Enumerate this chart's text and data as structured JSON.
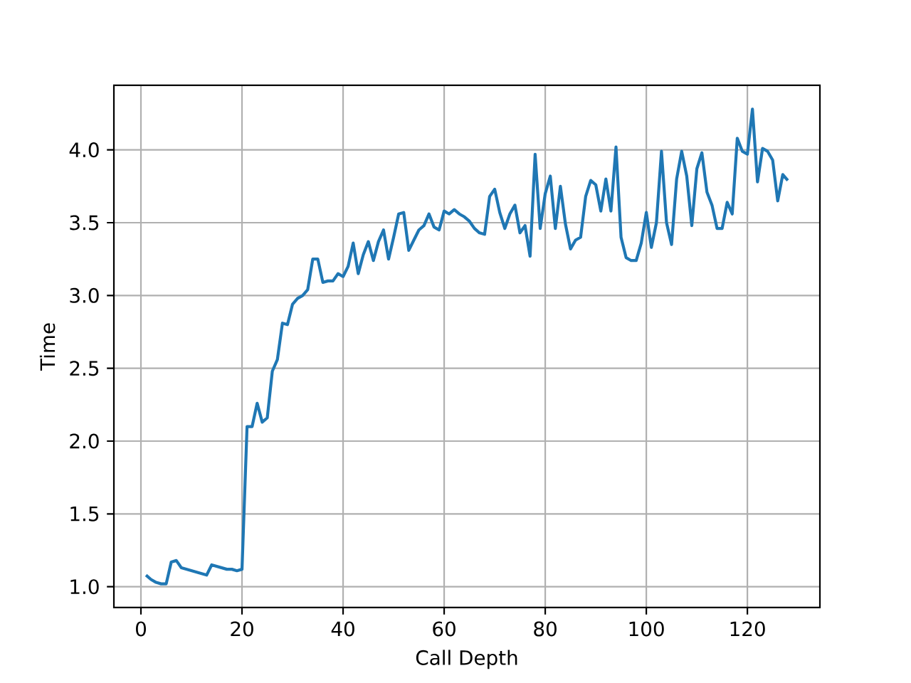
{
  "chart_data": {
    "type": "line",
    "xlabel": "Call Depth",
    "ylabel": "Time",
    "color": "#1f77b4",
    "grid": true,
    "xlim": [
      -5.35,
      134.35
    ],
    "ylim": [
      0.857,
      4.443
    ],
    "xticks": [
      0,
      20,
      40,
      60,
      80,
      100,
      120
    ],
    "yticks": [
      {
        "value": 1.0,
        "label": "1.0"
      },
      {
        "value": 1.5,
        "label": "1.5"
      },
      {
        "value": 2.0,
        "label": "2.0"
      },
      {
        "value": 2.5,
        "label": "2.5"
      },
      {
        "value": 3.0,
        "label": "3.0"
      },
      {
        "value": 3.5,
        "label": "3.5"
      },
      {
        "value": 4.0,
        "label": "4.0"
      }
    ],
    "x": [
      1,
      2,
      3,
      4,
      5,
      6,
      7,
      8,
      9,
      10,
      11,
      12,
      13,
      14,
      15,
      16,
      17,
      18,
      19,
      20,
      21,
      22,
      23,
      24,
      25,
      26,
      27,
      28,
      29,
      30,
      31,
      32,
      33,
      34,
      35,
      36,
      37,
      38,
      39,
      40,
      41,
      42,
      43,
      44,
      45,
      46,
      47,
      48,
      49,
      50,
      51,
      52,
      53,
      54,
      55,
      56,
      57,
      58,
      59,
      60,
      61,
      62,
      63,
      64,
      65,
      66,
      67,
      68,
      69,
      70,
      71,
      72,
      73,
      74,
      75,
      76,
      77,
      78,
      79,
      80,
      81,
      82,
      83,
      84,
      85,
      86,
      87,
      88,
      89,
      90,
      91,
      92,
      93,
      94,
      95,
      96,
      97,
      98,
      99,
      100,
      101,
      102,
      103,
      104,
      105,
      106,
      107,
      108,
      109,
      110,
      111,
      112,
      113,
      114,
      115,
      116,
      117,
      118,
      119,
      120,
      121,
      122,
      123,
      124,
      125,
      126,
      127,
      128
    ],
    "values": [
      1.08,
      1.05,
      1.03,
      1.02,
      1.02,
      1.17,
      1.18,
      1.13,
      1.12,
      1.11,
      1.1,
      1.09,
      1.08,
      1.15,
      1.14,
      1.13,
      1.12,
      1.12,
      1.11,
      1.12,
      2.1,
      2.1,
      2.26,
      2.13,
      2.16,
      2.48,
      2.56,
      2.81,
      2.8,
      2.94,
      2.98,
      3.0,
      3.04,
      3.25,
      3.25,
      3.09,
      3.1,
      3.1,
      3.15,
      3.13,
      3.2,
      3.36,
      3.15,
      3.28,
      3.37,
      3.24,
      3.37,
      3.45,
      3.25,
      3.4,
      3.56,
      3.57,
      3.31,
      3.38,
      3.45,
      3.48,
      3.56,
      3.47,
      3.45,
      3.58,
      3.56,
      3.59,
      3.56,
      3.54,
      3.51,
      3.46,
      3.43,
      3.42,
      3.68,
      3.73,
      3.57,
      3.46,
      3.56,
      3.62,
      3.43,
      3.48,
      3.27,
      3.97,
      3.46,
      3.7,
      3.82,
      3.46,
      3.75,
      3.49,
      3.32,
      3.38,
      3.4,
      3.68,
      3.79,
      3.76,
      3.58,
      3.8,
      3.58,
      4.02,
      3.4,
      3.26,
      3.24,
      3.24,
      3.36,
      3.57,
      3.33,
      3.5,
      3.99,
      3.5,
      3.35,
      3.8,
      3.99,
      3.82,
      3.48,
      3.87,
      3.98,
      3.71,
      3.62,
      3.46,
      3.46,
      3.64,
      3.56,
      4.08,
      3.99,
      3.97,
      4.28,
      3.78,
      4.01,
      3.99,
      3.93,
      3.65,
      3.83,
      3.79
    ]
  }
}
